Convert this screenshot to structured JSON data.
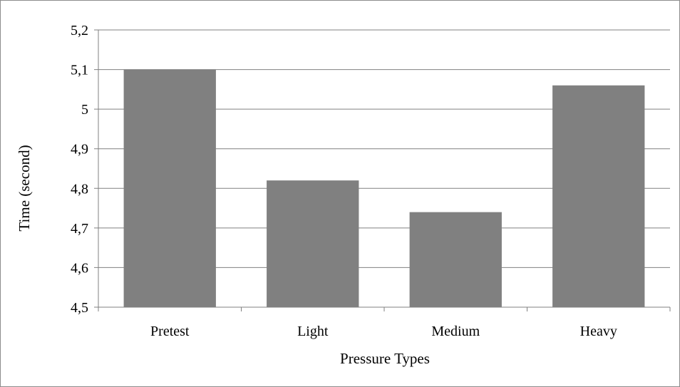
{
  "chart_data": {
    "type": "bar",
    "title": "",
    "categories": [
      "Pretest",
      "Light",
      "Medium",
      "Heavy"
    ],
    "series": [
      {
        "values": [
          5.1,
          4.82,
          4.74,
          5.06
        ]
      }
    ],
    "xlabel": "Pressure Types",
    "ylabel": "Time (second)",
    "ylim": [
      4.5,
      5.2
    ],
    "yticks": [
      "4,5",
      "4,6",
      "4,7",
      "4,8",
      "4,9",
      "5",
      "5,1",
      "5,2"
    ],
    "grid": true,
    "legend": "none",
    "colors": {
      "bar": "#808080",
      "grid": "#808080",
      "frame": "#8c8c8c"
    }
  }
}
